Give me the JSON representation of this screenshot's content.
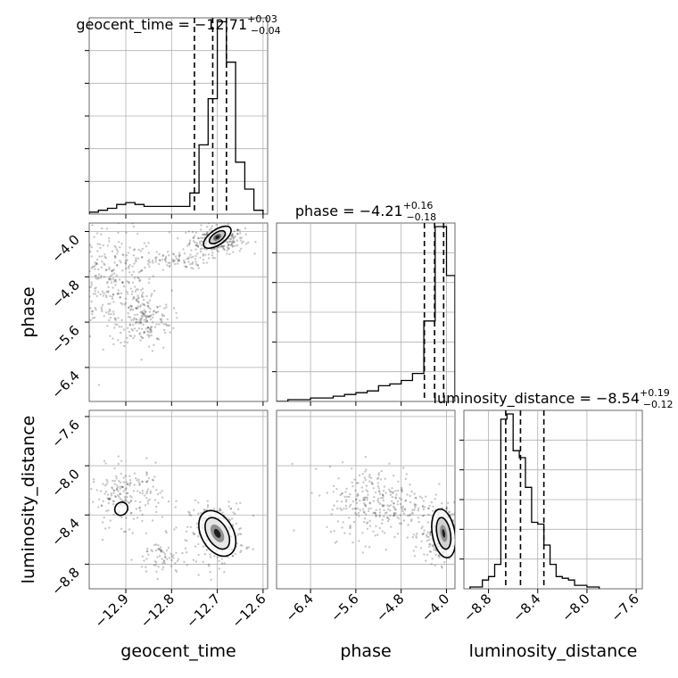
{
  "chart_data": {
    "type": "corner",
    "parameters": [
      "geocent_time",
      "phase",
      "luminosity_distance"
    ],
    "titles": [
      {
        "param": "geocent_time",
        "label": "geocent_time",
        "median": "−12.71",
        "plus": "+0.03",
        "minus": "−0.04"
      },
      {
        "param": "phase",
        "label": "phase",
        "median": "−4.21",
        "plus": "+0.16",
        "minus": "−0.18"
      },
      {
        "param": "luminosity_distance",
        "label": "luminosity_distance",
        "median": "−8.54",
        "plus": "+0.19",
        "minus": "−0.12"
      }
    ],
    "axes": {
      "geocent_time": {
        "range": [
          -12.98,
          -12.59
        ],
        "ticks": [
          -12.9,
          -12.8,
          -12.7,
          -12.6
        ],
        "tick_labels": [
          "−12.9",
          "−12.8",
          "−12.7",
          "−12.6"
        ]
      },
      "phase": {
        "range": [
          -7.0,
          -3.85
        ],
        "ticks": [
          -6.4,
          -5.6,
          -4.8,
          -4.0
        ],
        "tick_labels": [
          "−6.4",
          "−5.6",
          "−4.8",
          "−4.0"
        ]
      },
      "luminosity_distance": {
        "range": [
          -9.0,
          -7.55
        ],
        "ticks": [
          -8.8,
          -8.4,
          -8.0,
          -7.6
        ],
        "tick_labels": [
          "−8.8",
          "−8.4",
          "−8.0",
          "−7.6"
        ]
      }
    },
    "histograms": {
      "geocent_time": {
        "edges": [
          -12.98,
          -12.96,
          -12.94,
          -12.92,
          -12.9,
          -12.88,
          -12.86,
          -12.84,
          -12.82,
          -12.8,
          -12.78,
          -12.76,
          -12.74,
          -12.72,
          -12.7,
          -12.68,
          -12.66,
          -12.64,
          -12.62,
          -12.6
        ],
        "counts": [
          1,
          2,
          3,
          5,
          6,
          5,
          4,
          4,
          4,
          4,
          4,
          11,
          36,
          60,
          100,
          79,
          27,
          13,
          2
        ],
        "quantiles": [
          -12.75,
          -12.71,
          -12.68
        ]
      },
      "phase": {
        "edges": [
          -7.0,
          -6.8,
          -6.6,
          -6.4,
          -6.2,
          -6.0,
          -5.8,
          -5.6,
          -5.4,
          -5.2,
          -5.0,
          -4.8,
          -4.6,
          -4.4,
          -4.2,
          -4.0,
          -3.85
        ],
        "counts": [
          0,
          1,
          1,
          2,
          2,
          3,
          4,
          5,
          6,
          9,
          10,
          12,
          16,
          46,
          100,
          72
        ],
        "quantiles": [
          -4.39,
          -4.21,
          -4.05
        ]
      },
      "luminosity_distance": {
        "edges": [
          -8.95,
          -8.9,
          -8.85,
          -8.8,
          -8.75,
          -8.7,
          -8.65,
          -8.6,
          -8.55,
          -8.5,
          -8.45,
          -8.4,
          -8.35,
          -8.3,
          -8.25,
          -8.2,
          -8.15,
          -8.1,
          -8.05,
          -8.0,
          -7.95,
          -7.9
        ],
        "counts": [
          1,
          1,
          5,
          7,
          14,
          97,
          100,
          79,
          75,
          58,
          38,
          37,
          25,
          14,
          7,
          6,
          5,
          2,
          2,
          1,
          1
        ],
        "quantiles": [
          -8.66,
          -8.54,
          -8.35
        ]
      }
    },
    "scatter_clusters": [
      {
        "x": "geocent_time",
        "y": "phase",
        "cx": -12.7,
        "cy": -4.15,
        "sx": 0.03,
        "sy": 0.12,
        "n": 260
      },
      {
        "x": "geocent_time",
        "y": "phase",
        "cx": -12.93,
        "cy": -4.9,
        "sx": 0.05,
        "sy": 0.45,
        "n": 300
      },
      {
        "x": "geocent_time",
        "y": "phase",
        "cx": -12.86,
        "cy": -5.55,
        "sx": 0.03,
        "sy": 0.25,
        "n": 180
      },
      {
        "x": "geocent_time",
        "y": "phase",
        "cx": -12.8,
        "cy": -4.5,
        "sx": 0.04,
        "sy": 0.08,
        "n": 90
      },
      {
        "x": "geocent_time",
        "y": "luminosity_distance",
        "cx": -12.7,
        "cy": -8.55,
        "sx": 0.03,
        "sy": 0.12,
        "n": 260
      },
      {
        "x": "geocent_time",
        "y": "luminosity_distance",
        "cx": -12.9,
        "cy": -8.25,
        "sx": 0.04,
        "sy": 0.12,
        "n": 200
      },
      {
        "x": "geocent_time",
        "y": "luminosity_distance",
        "cx": -12.82,
        "cy": -8.75,
        "sx": 0.03,
        "sy": 0.08,
        "n": 70
      },
      {
        "x": "phase",
        "y": "luminosity_distance",
        "cx": -4.1,
        "cy": -8.55,
        "sx": 0.18,
        "sy": 0.12,
        "n": 260
      },
      {
        "x": "phase",
        "y": "luminosity_distance",
        "cx": -5.2,
        "cy": -8.3,
        "sx": 0.45,
        "sy": 0.15,
        "n": 300
      }
    ],
    "contours": [
      {
        "x": "geocent_time",
        "y": "phase",
        "cx": -12.7,
        "cy": -4.1,
        "levels": [
          {
            "rx": 0.035,
            "ry": 0.13,
            "fill": "#ffffff",
            "stroke": true
          },
          {
            "rx": 0.02,
            "ry": 0.08,
            "fill": "#c8c8c8",
            "stroke": true
          },
          {
            "rx": 0.01,
            "ry": 0.05,
            "fill": "#707070",
            "stroke": false
          },
          {
            "rx": 0.005,
            "ry": 0.03,
            "fill": "#1e1e1e",
            "stroke": false
          }
        ],
        "angle": -35
      },
      {
        "x": "geocent_time",
        "y": "luminosity_distance",
        "cx": -12.7,
        "cy": -8.55,
        "levels": [
          {
            "rx": 0.035,
            "ry": 0.2,
            "fill": "#ffffff",
            "stroke": true
          },
          {
            "rx": 0.022,
            "ry": 0.14,
            "fill": "#e6e6e6",
            "stroke": true
          },
          {
            "rx": 0.012,
            "ry": 0.08,
            "fill": "#909090",
            "stroke": false
          },
          {
            "rx": 0.006,
            "ry": 0.04,
            "fill": "#1e1e1e",
            "stroke": false
          }
        ],
        "angle": -30
      },
      {
        "x": "geocent_time",
        "y": "luminosity_distance",
        "cx": -12.91,
        "cy": -8.35,
        "levels": [
          {
            "rx": 0.015,
            "ry": 0.05,
            "fill": "#ffffff",
            "stroke": true
          }
        ],
        "angle": -50
      },
      {
        "x": "phase",
        "y": "luminosity_distance",
        "cx": -4.05,
        "cy": -8.55,
        "levels": [
          {
            "rx": 0.2,
            "ry": 0.2,
            "fill": "#ffffff",
            "stroke": true
          },
          {
            "rx": 0.12,
            "ry": 0.13,
            "fill": "#d2d2d2",
            "stroke": true
          },
          {
            "rx": 0.06,
            "ry": 0.07,
            "fill": "#909090",
            "stroke": false
          },
          {
            "rx": 0.025,
            "ry": 0.035,
            "fill": "#1e1e1e",
            "stroke": false
          }
        ],
        "angle": -10
      }
    ]
  }
}
